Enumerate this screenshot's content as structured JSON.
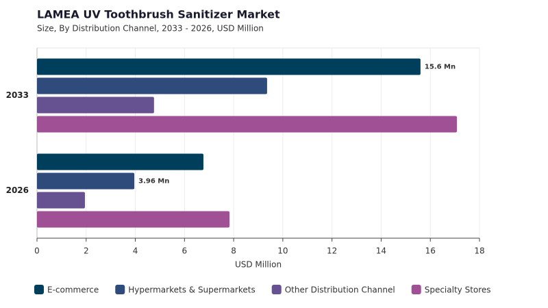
{
  "chart_data": {
    "type": "hbar",
    "title": "LAMEA UV Toothbrush Sanitizer Market",
    "subtitle": "Size, By Distribution Channel, 2033 - 2026, USD Million",
    "x_label": "USD Million",
    "categories": [
      "2033",
      "2026"
    ],
    "series": [
      {
        "name": "E-commerce",
        "color": "#003f5c",
        "values": [
          15.6,
          6.77
        ],
        "value_labels": [
          "15.6 Mn",
          null
        ]
      },
      {
        "name": "Hypermarkets & Supermarkets",
        "color": "#2f4b7c",
        "values": [
          9.36,
          3.96
        ],
        "value_labels": [
          null,
          "3.96 Mn"
        ]
      },
      {
        "name": "Other Distribution Channel",
        "color": "#665191",
        "values": [
          4.76,
          1.95
        ]
      },
      {
        "name": "Specialty Stores",
        "color": "#a05195",
        "values": [
          17.08,
          7.83
        ]
      }
    ],
    "xlim": [
      0,
      18
    ],
    "xticks": [
      0,
      2,
      4,
      6,
      8,
      10,
      12,
      14,
      16,
      18
    ],
    "grid": true
  }
}
